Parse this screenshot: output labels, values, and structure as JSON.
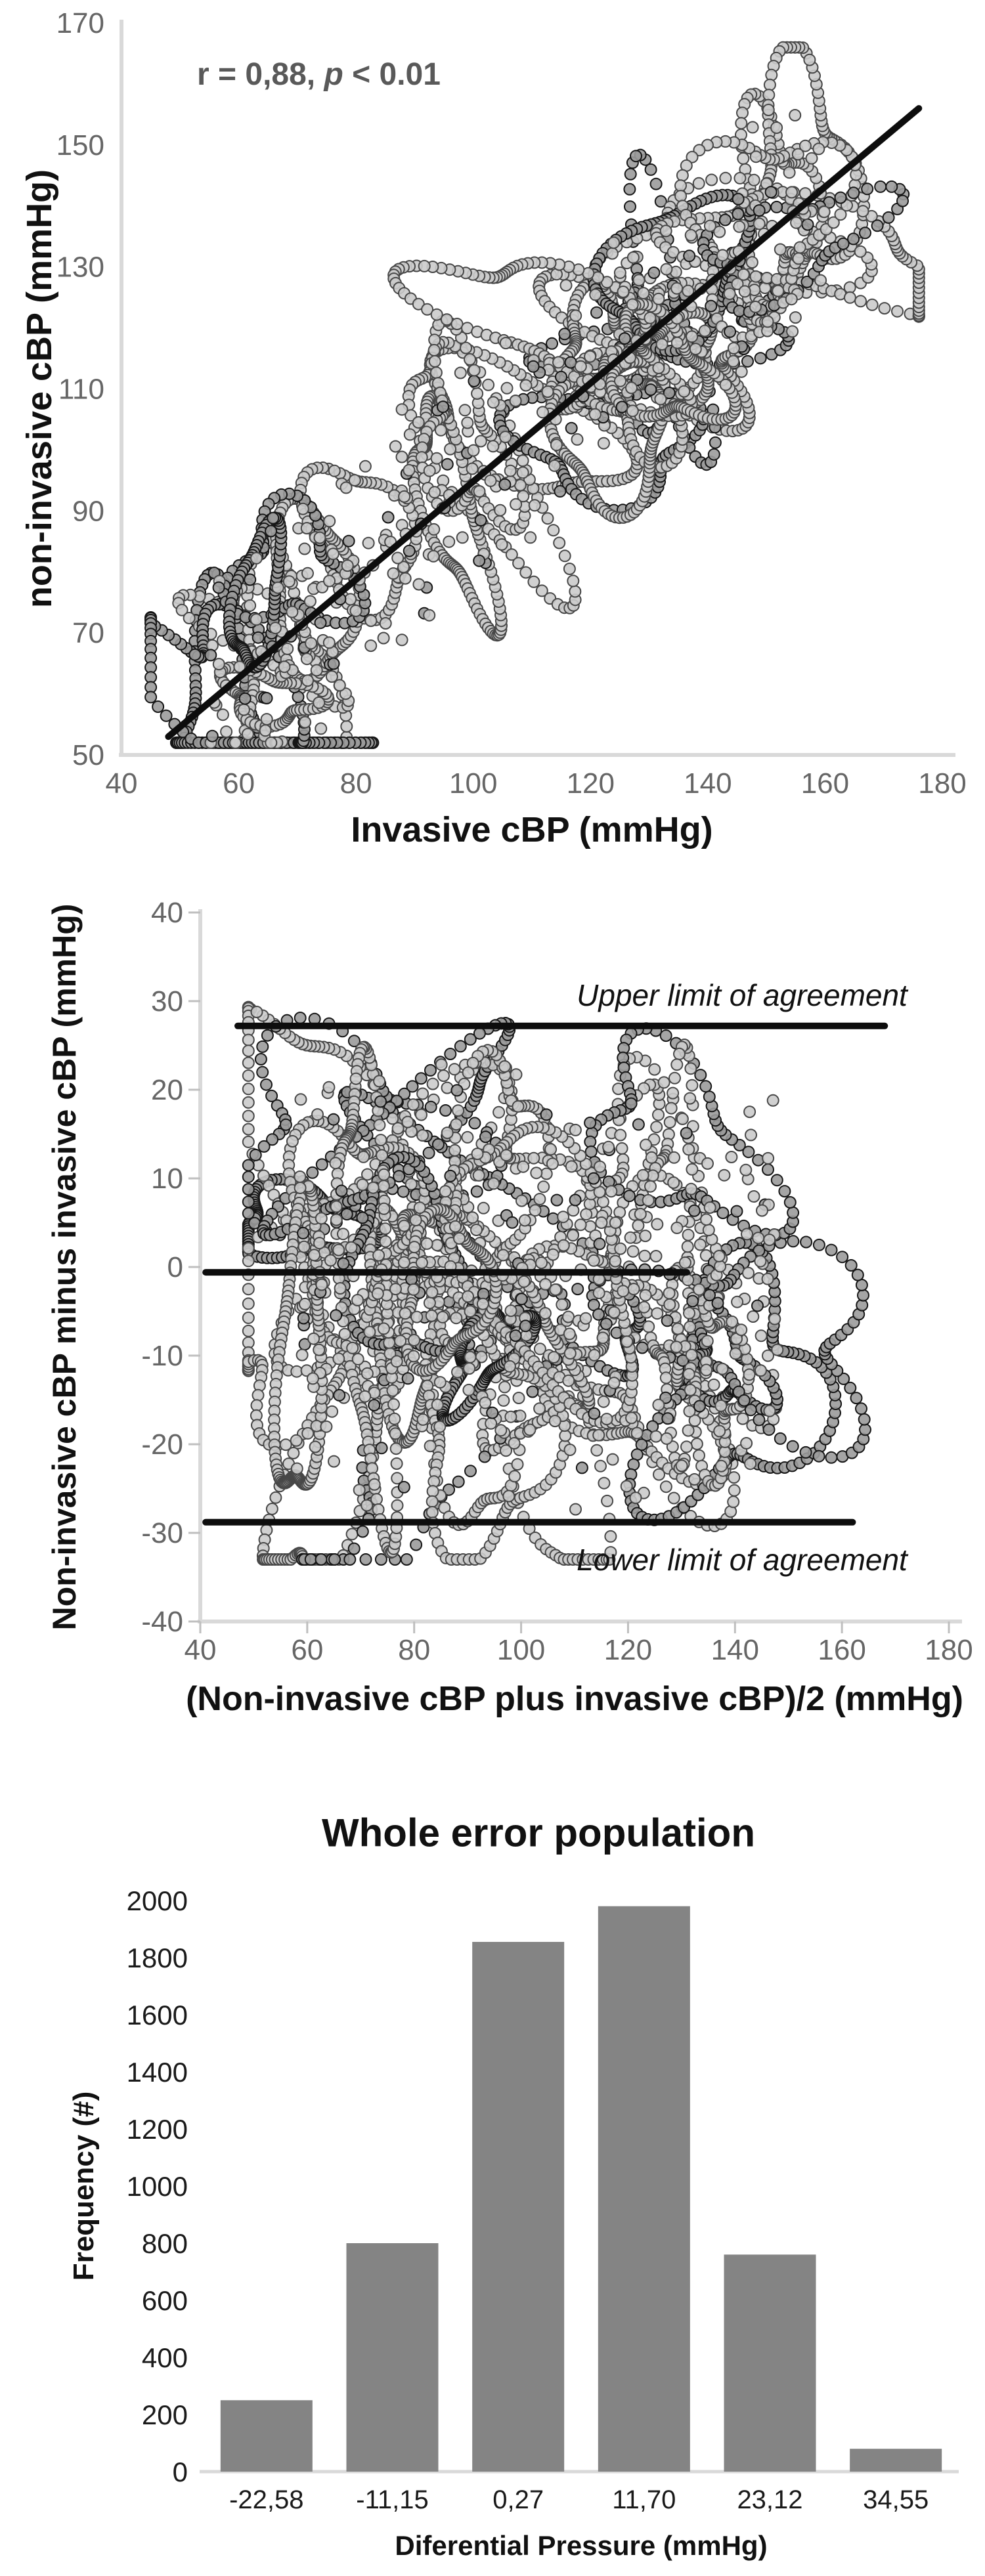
{
  "figure": {
    "background": "#ffffff",
    "colors": {
      "axis_line": "#d9d9d9",
      "tick_mark": "#bfbfbf",
      "tick_label_gray": "#666666",
      "tick_label_black": "#1a1a1a",
      "title_black": "#111111",
      "annotation_gray": "#595959",
      "dot_fill_light": "#cbcbcb",
      "dot_stroke_light": "#474747",
      "dot_fill_dark": "#9b9b9b",
      "dot_stroke_dark": "#161616",
      "black_line": "#0d0d0d",
      "bar_fill": "#848484"
    }
  },
  "chart_data": [
    {
      "type": "scatter",
      "title": "",
      "xlabel": "Invasive cBP (mmHg)",
      "ylabel": "non-invasive cBP (mmHg)",
      "xlim": [
        40,
        180
      ],
      "ylim": [
        50,
        170
      ],
      "xticks": [
        40,
        60,
        80,
        100,
        120,
        140,
        160,
        180
      ],
      "yticks": [
        50,
        70,
        90,
        110,
        130,
        150,
        170
      ],
      "grid": false,
      "legend": null,
      "annotation": {
        "prefix": "r = 0,88, ",
        "italic": "p",
        "suffix": " < 0.01",
        "r_value": "0,88",
        "p_value": "< 0.01"
      },
      "regression_line": {
        "x1": 48,
        "y1": 53,
        "x2": 176,
        "y2": 156
      },
      "point_cloud": {
        "seed": 11,
        "loops": 30,
        "diffuse": 350,
        "cx": [
          55,
          160
        ],
        "slope": 0.8,
        "intercept": 16,
        "center_jitter": 14,
        "rx": [
          6,
          26
        ],
        "ry": [
          3,
          12
        ],
        "diffuse_sd": 10,
        "clamp_x": [
          45,
          176
        ],
        "clamp_y": [
          52,
          166
        ],
        "dot_r": 8.5,
        "dark_frac": 0.25
      }
    },
    {
      "type": "scatter",
      "title": "",
      "xlabel": "(Non-invasive cBP plus invasive cBP)/2 (mmHg)",
      "ylabel": "Non-invasive cBP minus invasive cBP (mmHg)",
      "xlim": [
        40,
        180
      ],
      "ylim": [
        -40,
        40
      ],
      "xticks": [
        40,
        60,
        80,
        100,
        120,
        140,
        160,
        180
      ],
      "yticks": [
        40,
        30,
        20,
        10,
        0,
        -10,
        -20,
        -30,
        -40
      ],
      "grid": false,
      "legend": null,
      "lines": [
        {
          "value": 27.2,
          "x1": 47,
          "x2": 168,
          "label": "Upper limit of agreement",
          "label_pos": "above"
        },
        {
          "value": -0.6,
          "x1": 41,
          "x2": 131,
          "label": "",
          "label_pos": "none"
        },
        {
          "value": -28.8,
          "x1": 41,
          "x2": 162,
          "label": "Lower limit of agreement",
          "label_pos": "below"
        }
      ],
      "point_cloud": {
        "seed": 23,
        "loops": 32,
        "diffuse": 380,
        "cx": [
          58,
          148
        ],
        "cy": [
          -22,
          16
        ],
        "center_bias": -2,
        "rx": [
          7,
          30
        ],
        "ry": [
          3,
          13
        ],
        "diffuse_spread": 26,
        "clamp_x": [
          49,
          169
        ],
        "clamp_y": [
          -33,
          34.5
        ],
        "dot_r": 8.5,
        "dark_frac": 0.25
      }
    },
    {
      "type": "bar",
      "title": "Whole error population",
      "xlabel": "Diferential Pressure (mmHg)",
      "ylabel": "Frequency (#)",
      "categories": [
        "-22,58",
        "-11,15",
        "0,27",
        "11,70",
        "23,12",
        "34,55"
      ],
      "values": [
        250,
        800,
        1855,
        1980,
        760,
        80
      ],
      "ylim": [
        0,
        2000
      ],
      "yticks": [
        0,
        200,
        400,
        600,
        800,
        1000,
        1200,
        1400,
        1600,
        1800,
        2000
      ],
      "grid": false,
      "legend": null,
      "bar_color": "#848484"
    }
  ]
}
